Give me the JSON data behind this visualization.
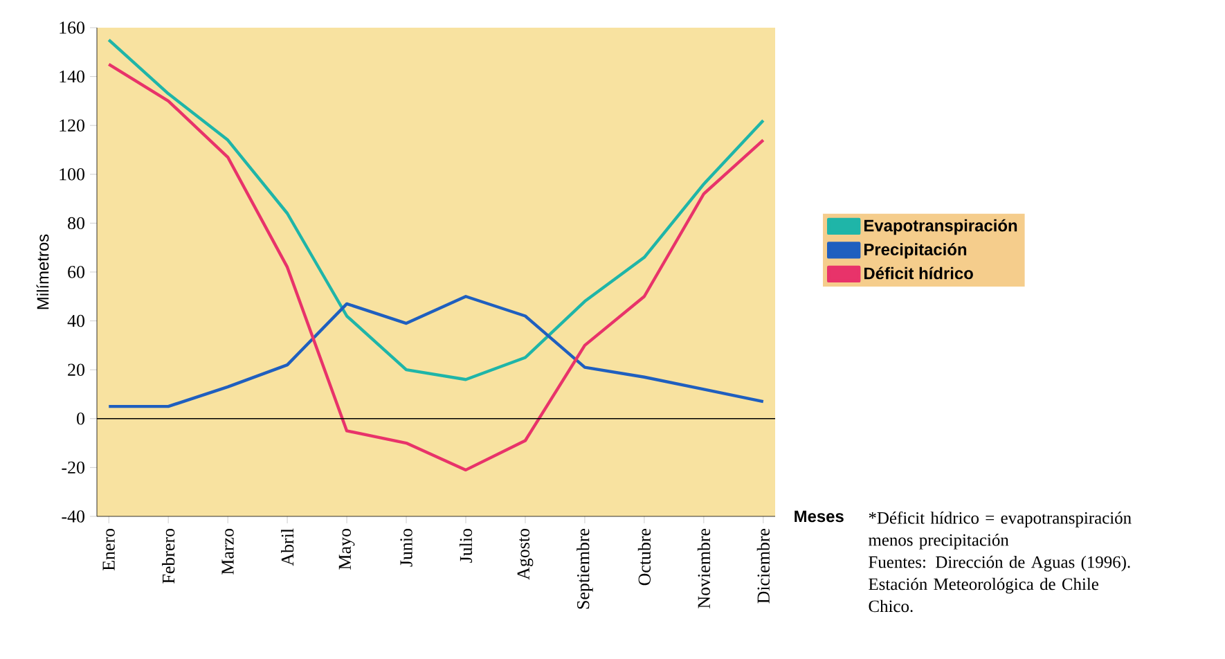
{
  "chart_data": {
    "type": "line",
    "ylabel": "Milímetros",
    "xlabel": "Meses",
    "categories": [
      "Enero",
      "Febrero",
      "Marzo",
      "Abril",
      "Mayo",
      "Junio",
      "Julio",
      "Agosto",
      "Septiembre",
      "Octubre",
      "Noviembre",
      "Diciembre"
    ],
    "series": [
      {
        "name": "Evapotranspiración",
        "color": "#1fb5a8",
        "values": [
          155,
          133,
          114,
          84,
          42,
          20,
          16,
          25,
          48,
          66,
          96,
          122
        ]
      },
      {
        "name": "Precipitación",
        "color": "#1f5fbf",
        "values": [
          5,
          5,
          13,
          22,
          47,
          39,
          50,
          42,
          21,
          17,
          12,
          7
        ]
      },
      {
        "name": "Déficit hídrico",
        "color": "#e8336a",
        "values": [
          145,
          130,
          107,
          62,
          -5,
          -10,
          -21,
          -9,
          30,
          50,
          92,
          114
        ]
      }
    ],
    "ylim": [
      -40,
      160
    ],
    "yticks": [
      -40,
      -20,
      0,
      20,
      40,
      60,
      80,
      100,
      120,
      140,
      160
    ],
    "ref_lines": [
      {
        "axis": "y",
        "value": 0,
        "color": "#000000"
      }
    ],
    "legend": "right",
    "grid": false,
    "marker": "none",
    "line_style": "solid",
    "annotations": [
      "*Déficit hídrico = evapotranspiración menos precipitación",
      "Fuentes: Dirección de Aguas (1996). Estación Meteorológica de Chile Chico."
    ]
  }
}
